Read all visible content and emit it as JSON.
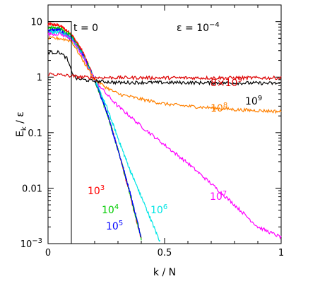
{
  "chart_data": {
    "type": "line",
    "xlabel": "k / N",
    "ylabel_main": "E",
    "ylabel_sub": "k",
    "ylabel_rest": " / ε",
    "xlim": [
      0,
      1
    ],
    "ylim": [
      0.001,
      20
    ],
    "yscale": "log",
    "x_ticks": [
      {
        "value": 0,
        "label": "0"
      },
      {
        "value": 0.5,
        "label": "0.5"
      },
      {
        "value": 1,
        "label": "1"
      }
    ],
    "y_ticks": [
      {
        "value": 10,
        "label": "10"
      },
      {
        "value": 1,
        "label": "1"
      },
      {
        "value": 0.1,
        "label": "0.1"
      },
      {
        "value": 0.01,
        "label": "0.01"
      },
      {
        "value": 0.001,
        "label_base": "10",
        "label_exp": "−3"
      }
    ],
    "annotations": {
      "time": "t = 0",
      "epsilon_base": "ε = 10",
      "epsilon_exp": "−4"
    },
    "initial_box": {
      "k_cut": 0.1,
      "level": 10,
      "color": "#000000"
    },
    "series": [
      {
        "name_base": "10",
        "name_exp": "3",
        "color": "#ff0000",
        "x": [
          0,
          0.05,
          0.1,
          0.15,
          0.2,
          0.25,
          0.3,
          0.35,
          0.4
        ],
        "y": [
          9.0,
          8.5,
          6.0,
          2.8,
          0.9,
          0.25,
          0.05,
          0.008,
          0.0012
        ]
      },
      {
        "name_base": "10",
        "name_exp": "4",
        "color": "#00cc00",
        "x": [
          0,
          0.05,
          0.1,
          0.15,
          0.2,
          0.25,
          0.3,
          0.35,
          0.4
        ],
        "y": [
          8.0,
          7.5,
          5.5,
          2.6,
          0.9,
          0.24,
          0.05,
          0.0085,
          0.0012
        ]
      },
      {
        "name_base": "10",
        "name_exp": "5",
        "color": "#0000ff",
        "x": [
          0,
          0.05,
          0.1,
          0.15,
          0.2,
          0.25,
          0.3,
          0.35,
          0.4
        ],
        "y": [
          7.0,
          7.0,
          5.0,
          2.5,
          0.9,
          0.25,
          0.05,
          0.009,
          0.0013
        ]
      },
      {
        "name_base": "10",
        "name_exp": "6",
        "color": "#00e5e5",
        "x": [
          0,
          0.05,
          0.1,
          0.15,
          0.2,
          0.25,
          0.3,
          0.35,
          0.4,
          0.45,
          0.48
        ],
        "y": [
          6.5,
          6.5,
          5.0,
          2.4,
          0.9,
          0.3,
          0.08,
          0.022,
          0.007,
          0.0022,
          0.0011
        ]
      },
      {
        "name_base": "10",
        "name_exp": "7",
        "color": "#ff00ff",
        "x": [
          0,
          0.05,
          0.1,
          0.15,
          0.2,
          0.25,
          0.3,
          0.35,
          0.4,
          0.5,
          0.6,
          0.7,
          0.8,
          0.9,
          1.0
        ],
        "y": [
          6.0,
          6.0,
          5.0,
          2.3,
          0.9,
          0.5,
          0.3,
          0.2,
          0.13,
          0.06,
          0.028,
          0.012,
          0.005,
          0.002,
          0.0013
        ]
      },
      {
        "name_base": "10",
        "name_exp": "8",
        "color": "#ff8000",
        "x": [
          0,
          0.05,
          0.1,
          0.15,
          0.2,
          0.25,
          0.3,
          0.4,
          0.5,
          0.6,
          0.7,
          0.8,
          0.9,
          1.0
        ],
        "y": [
          5.0,
          5.0,
          4.5,
          2.0,
          0.9,
          0.65,
          0.5,
          0.4,
          0.33,
          0.3,
          0.28,
          0.26,
          0.25,
          0.24
        ]
      },
      {
        "name_base": "10",
        "name_exp": "9",
        "color": "#000000",
        "x": [
          0,
          0.05,
          0.08,
          0.1,
          0.12,
          0.15,
          0.2,
          0.3,
          0.5,
          0.7,
          0.9,
          1.0
        ],
        "y": [
          2.8,
          2.8,
          2.2,
          1.3,
          0.95,
          0.9,
          0.85,
          0.8,
          0.8,
          0.79,
          0.78,
          0.77
        ]
      },
      {
        "name_base": "8×10",
        "name_exp": "9",
        "color": "#dd0000",
        "x": [
          0,
          0.05,
          0.1,
          0.15,
          0.2,
          0.3,
          0.5,
          0.7,
          0.9,
          1.0
        ],
        "y": [
          1.15,
          1.1,
          1.05,
          1.0,
          0.98,
          0.98,
          0.97,
          0.97,
          0.97,
          0.97
        ]
      }
    ]
  }
}
